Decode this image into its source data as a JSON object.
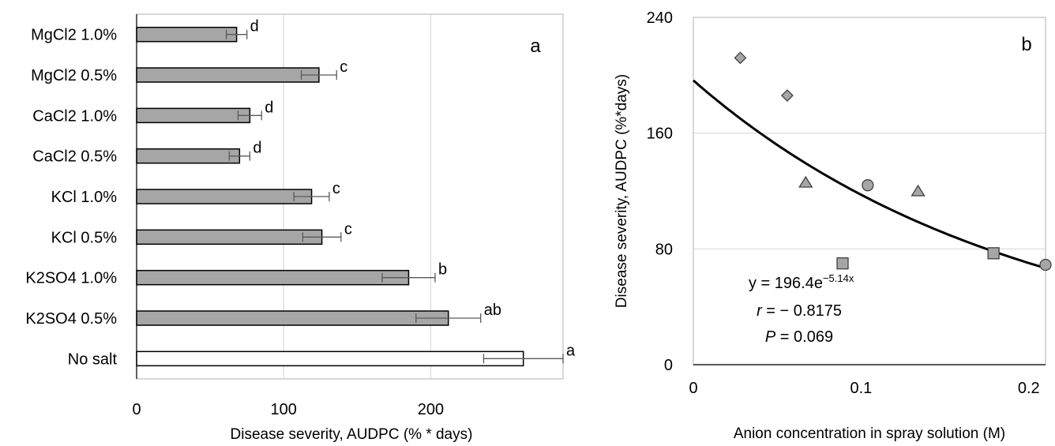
{
  "chart_data": [
    {
      "type": "bar",
      "orientation": "horizontal",
      "panel_label": "a",
      "xlabel": "Disease severity, AUDPC (% * days)",
      "xticks": [
        0,
        100,
        200
      ],
      "xlim": [
        0,
        290
      ],
      "grid": "vertical",
      "categories": [
        "MgCl2 1.0%",
        "MgCl2 0.5%",
        "CaCl2 1.0%",
        "CaCl2 0.5%",
        "KCl 1.0%",
        "KCl 0.5%",
        "K2SO4 1.0%",
        "K2SO4 0.5%",
        "No salt"
      ],
      "values": [
        68,
        124,
        77,
        70,
        119,
        126,
        185,
        212,
        263
      ],
      "errors": [
        7,
        12,
        8,
        7,
        12,
        13,
        18,
        22,
        27
      ],
      "letters": [
        "d",
        "c",
        "d",
        "d",
        "c",
        "c",
        "b",
        "ab",
        "a"
      ],
      "bar_colors": [
        "#a6a6a6",
        "#a6a6a6",
        "#a6a6a6",
        "#a6a6a6",
        "#a6a6a6",
        "#a6a6a6",
        "#a6a6a6",
        "#a6a6a6",
        "#ffffff"
      ]
    },
    {
      "type": "scatter",
      "panel_label": "b",
      "xlabel": "Anion concentration in spray solution (M)",
      "ylabel": "Disease severity, AUDPC  (%*days)",
      "xticks": [
        0,
        0.1,
        0.2
      ],
      "xlim": [
        0,
        0.21
      ],
      "yticks": [
        0,
        80,
        160,
        240
      ],
      "ylim": [
        0,
        240
      ],
      "grid": "horizontal",
      "points": [
        {
          "x": 0.028,
          "y": 212,
          "marker": "diamond"
        },
        {
          "x": 0.056,
          "y": 186,
          "marker": "diamond"
        },
        {
          "x": 0.067,
          "y": 126,
          "marker": "triangle"
        },
        {
          "x": 0.134,
          "y": 120,
          "marker": "triangle"
        },
        {
          "x": 0.104,
          "y": 124,
          "marker": "circle"
        },
        {
          "x": 0.21,
          "y": 69,
          "marker": "circle"
        },
        {
          "x": 0.089,
          "y": 70,
          "marker": "square"
        },
        {
          "x": 0.179,
          "y": 77,
          "marker": "square"
        }
      ],
      "fit": {
        "a": 196.4,
        "b": -5.14
      },
      "equation": {
        "prefix": "y = 196.4e",
        "exponent": "−5.14x"
      },
      "r_label": "r",
      "r_value": " = − 0.8175",
      "p_label": "P",
      "p_value": " = 0.069",
      "marker_color": "#a6a6a6"
    }
  ]
}
